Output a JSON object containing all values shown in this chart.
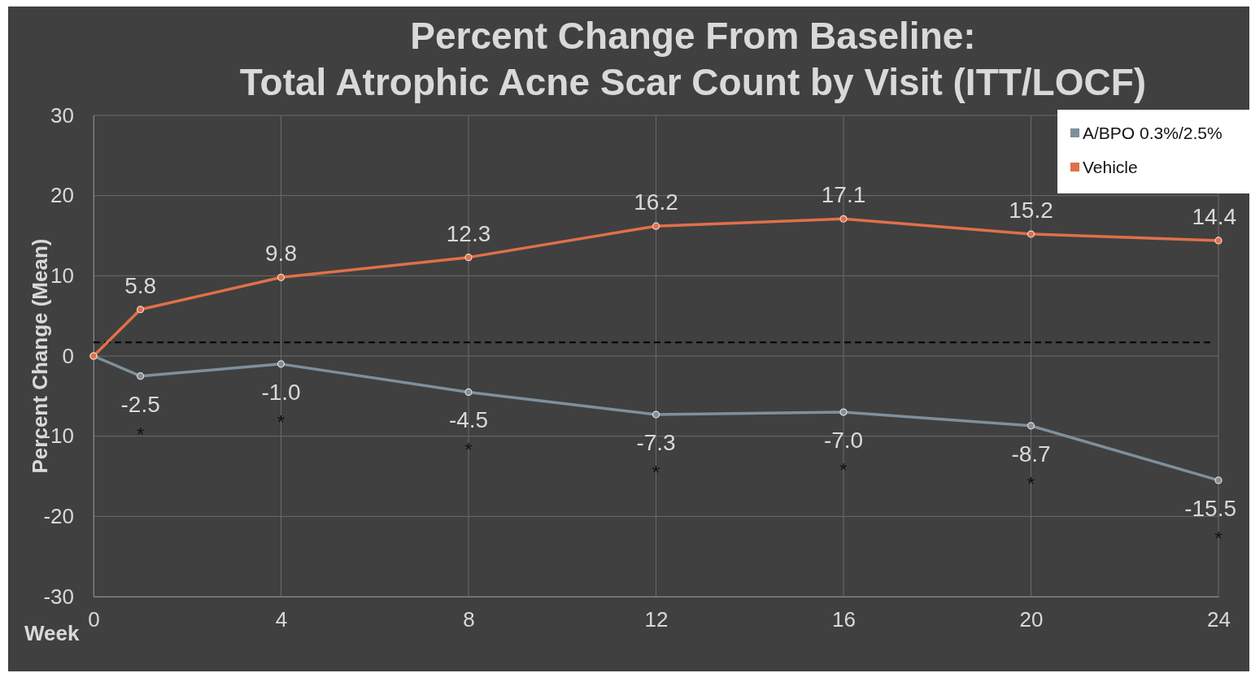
{
  "chart_data": {
    "type": "line",
    "title": "Percent Change From Baseline:\nTotal Atrophic Acne Scar Count by Visit (ITT/LOCF)",
    "xlabel": "Week",
    "ylabel": "Percent Change (Mean)",
    "x": [
      0,
      1,
      4,
      8,
      12,
      16,
      20,
      24
    ],
    "series": [
      {
        "name": "A/BPO 0.3%/2.5%",
        "color": "#7e909c",
        "values": [
          0,
          -2.5,
          -1.0,
          -4.5,
          -7.3,
          -7.0,
          -8.7,
          -15.5
        ],
        "value_labels": [
          null,
          "-2.5",
          "-1.0",
          "-4.5",
          "-7.3",
          "-7.0",
          "-8.7",
          "-15.5"
        ]
      },
      {
        "name": "Vehicle",
        "color": "#e0704a",
        "values": [
          0,
          5.8,
          9.8,
          12.3,
          16.2,
          17.1,
          15.2,
          14.4
        ],
        "value_labels": [
          null,
          "5.8",
          "9.8",
          "12.3",
          "16.2",
          "17.1",
          "15.2",
          "14.4"
        ]
      }
    ],
    "xlim": [
      0,
      24
    ],
    "xticks": [
      0,
      4,
      8,
      12,
      16,
      20,
      24
    ],
    "ylim": [
      -30,
      30
    ],
    "yticks": [
      -30,
      -20,
      -10,
      0,
      10,
      20,
      30
    ],
    "grid": true,
    "legend": "top right",
    "marker": "circle",
    "line_style": "solid",
    "ref_lines": [
      {
        "axis": "y",
        "value": 1.7,
        "color": "#000000",
        "line_style": "dashed"
      }
    ],
    "annotations": [
      "*",
      "*",
      "*",
      "*",
      "*",
      "*",
      "*"
    ]
  }
}
